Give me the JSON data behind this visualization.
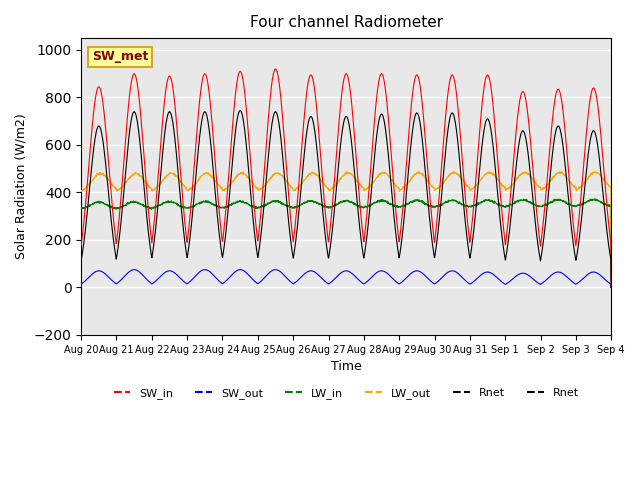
{
  "title": "Four channel Radiometer",
  "xlabel": "Time",
  "ylabel": "Solar Radiation (W/m2)",
  "ylim": [
    -200,
    1050
  ],
  "annotation_text": "SW_met",
  "annotation_color": "#8B0000",
  "annotation_bg": "#FFFF99",
  "annotation_border": "#DAA520",
  "bg_color": "#E8E8E8",
  "legend_entries": [
    "SW_in",
    "SW_out",
    "LW_in",
    "LW_out",
    "Rnet",
    "Rnet"
  ],
  "legend_colors": [
    "red",
    "blue",
    "green",
    "orange",
    "black",
    "black"
  ],
  "tick_labels": [
    "Aug 20",
    "Aug 21",
    "Aug 22",
    "Aug 23",
    "Aug 24",
    "Aug 25",
    "Aug 26",
    "Aug 27",
    "Aug 28",
    "Aug 29",
    "Aug 30",
    "Aug 31",
    "Sep 1",
    "Sep 2",
    "Sep 3",
    "Sep 4"
  ],
  "sw_in_peaks": [
    845,
    900,
    890,
    900,
    910,
    920,
    895,
    900,
    900,
    895,
    895,
    895,
    825,
    835,
    840
  ],
  "sw_out_peaks": [
    70,
    75,
    70,
    75,
    75,
    75,
    70,
    70,
    70,
    70,
    70,
    65,
    60,
    65,
    65
  ],
  "rnet_peaks": [
    680,
    740,
    740,
    740,
    745,
    740,
    720,
    720,
    730,
    735,
    735,
    710,
    660,
    680,
    660
  ]
}
